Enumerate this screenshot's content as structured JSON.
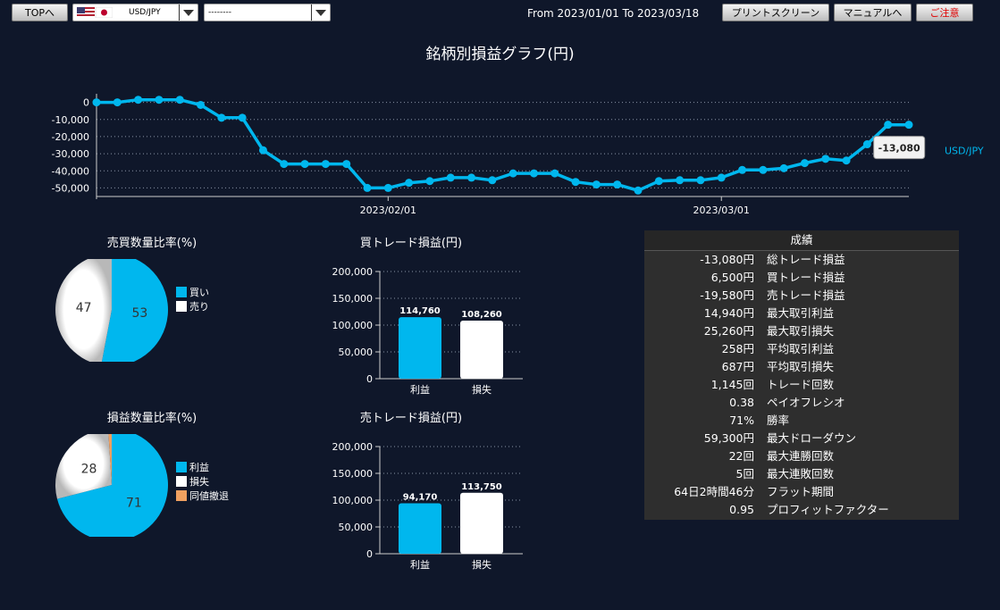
{
  "toolbar": {
    "top_label": "TOPへ",
    "pair_value": "USD/JPY",
    "second_value": "--------",
    "range_text": "From 2023/01/01 To 2023/03/18",
    "print_label": "プリントスクリーン",
    "manual_label": "マニュアルへ",
    "notice_label": "ご注意"
  },
  "colors": {
    "accent": "#00b7ee",
    "white": "#ffffff",
    "draw": "#f0a060",
    "bg": "#0f172a"
  },
  "main_title": "銘柄別損益グラフ(円)",
  "chart_data": [
    {
      "type": "line",
      "series": [
        {
          "name": "USD/JPY",
          "values": [
            0,
            0,
            1500,
            1500,
            1500,
            -1500,
            -9000,
            -9000,
            -28000,
            -36000,
            -36000,
            -36000,
            -36000,
            -50000,
            -50000,
            -47000,
            -46000,
            -44000,
            -44000,
            -45500,
            -41500,
            -41500,
            -41500,
            -46500,
            -48000,
            -48000,
            -51500,
            -46000,
            -45500,
            -45500,
            -44000,
            -39500,
            -39500,
            -38500,
            -35500,
            -33000,
            -34000,
            -24500,
            -13080,
            -13080
          ]
        }
      ],
      "yticks": [
        0,
        -10000,
        -20000,
        -30000,
        -40000,
        -50000
      ],
      "ytick_labels": [
        "0",
        "-10,000",
        "-20,000",
        "-30,000",
        "-40,000",
        "-50,000"
      ],
      "ylim": [
        -55000,
        5000
      ],
      "xticks": [
        {
          "index": 14,
          "label": "2023/02/01"
        },
        {
          "index": 30,
          "label": "2023/03/01"
        }
      ],
      "tooltip": "-13,080",
      "grid": true
    },
    {
      "type": "pie",
      "title": "売買数量比率(%)",
      "slices": [
        {
          "label": "買い",
          "value": 53,
          "color": "#00b7ee"
        },
        {
          "label": "売り",
          "value": 47,
          "color": "#ffffff"
        }
      ],
      "legend": "right"
    },
    {
      "type": "pie",
      "title": "損益数量比率(%)",
      "slices": [
        {
          "label": "利益",
          "value": 71,
          "color": "#00b7ee"
        },
        {
          "label": "損失",
          "value": 28,
          "color": "#ffffff"
        },
        {
          "label": "同値撤退",
          "value": 1,
          "color": "#f0a060"
        }
      ],
      "legend": "right"
    },
    {
      "type": "bar",
      "title": "買トレード損益(円)",
      "categories": [
        "利益",
        "損失"
      ],
      "values": [
        114760,
        108260
      ],
      "value_labels": [
        "114,760",
        "108,260"
      ],
      "yticks": [
        "0",
        "50,000",
        "100,000",
        "150,000",
        "200,000"
      ],
      "ylim": [
        0,
        200000
      ]
    },
    {
      "type": "bar",
      "title": "売トレード損益(円)",
      "categories": [
        "利益",
        "損失"
      ],
      "values": [
        94170,
        113750
      ],
      "value_labels": [
        "94,170",
        "113,750"
      ],
      "yticks": [
        "0",
        "50,000",
        "100,000",
        "150,000",
        "200,000"
      ],
      "ylim": [
        0,
        200000
      ]
    }
  ],
  "stats": {
    "header": "成績",
    "rows": [
      {
        "value": "-13,080円",
        "label": "総トレード損益"
      },
      {
        "value": "6,500円",
        "label": "買トレード損益"
      },
      {
        "value": "-19,580円",
        "label": "売トレード損益"
      },
      {
        "value": "14,940円",
        "label": "最大取引利益"
      },
      {
        "value": "25,260円",
        "label": "最大取引損失"
      },
      {
        "value": "258円",
        "label": "平均取引利益"
      },
      {
        "value": "687円",
        "label": "平均取引損失"
      },
      {
        "value": "1,145回",
        "label": "トレード回数"
      },
      {
        "value": "0.38",
        "label": "ペイオフレシオ"
      },
      {
        "value": "71%",
        "label": "勝率"
      },
      {
        "value": "59,300円",
        "label": "最大ドローダウン"
      },
      {
        "value": "22回",
        "label": "最大連勝回数"
      },
      {
        "value": "5回",
        "label": "最大連敗回数"
      },
      {
        "value": "64日2時間46分",
        "label": "フラット期間"
      },
      {
        "value": "0.95",
        "label": "プロフィットファクター"
      }
    ]
  }
}
